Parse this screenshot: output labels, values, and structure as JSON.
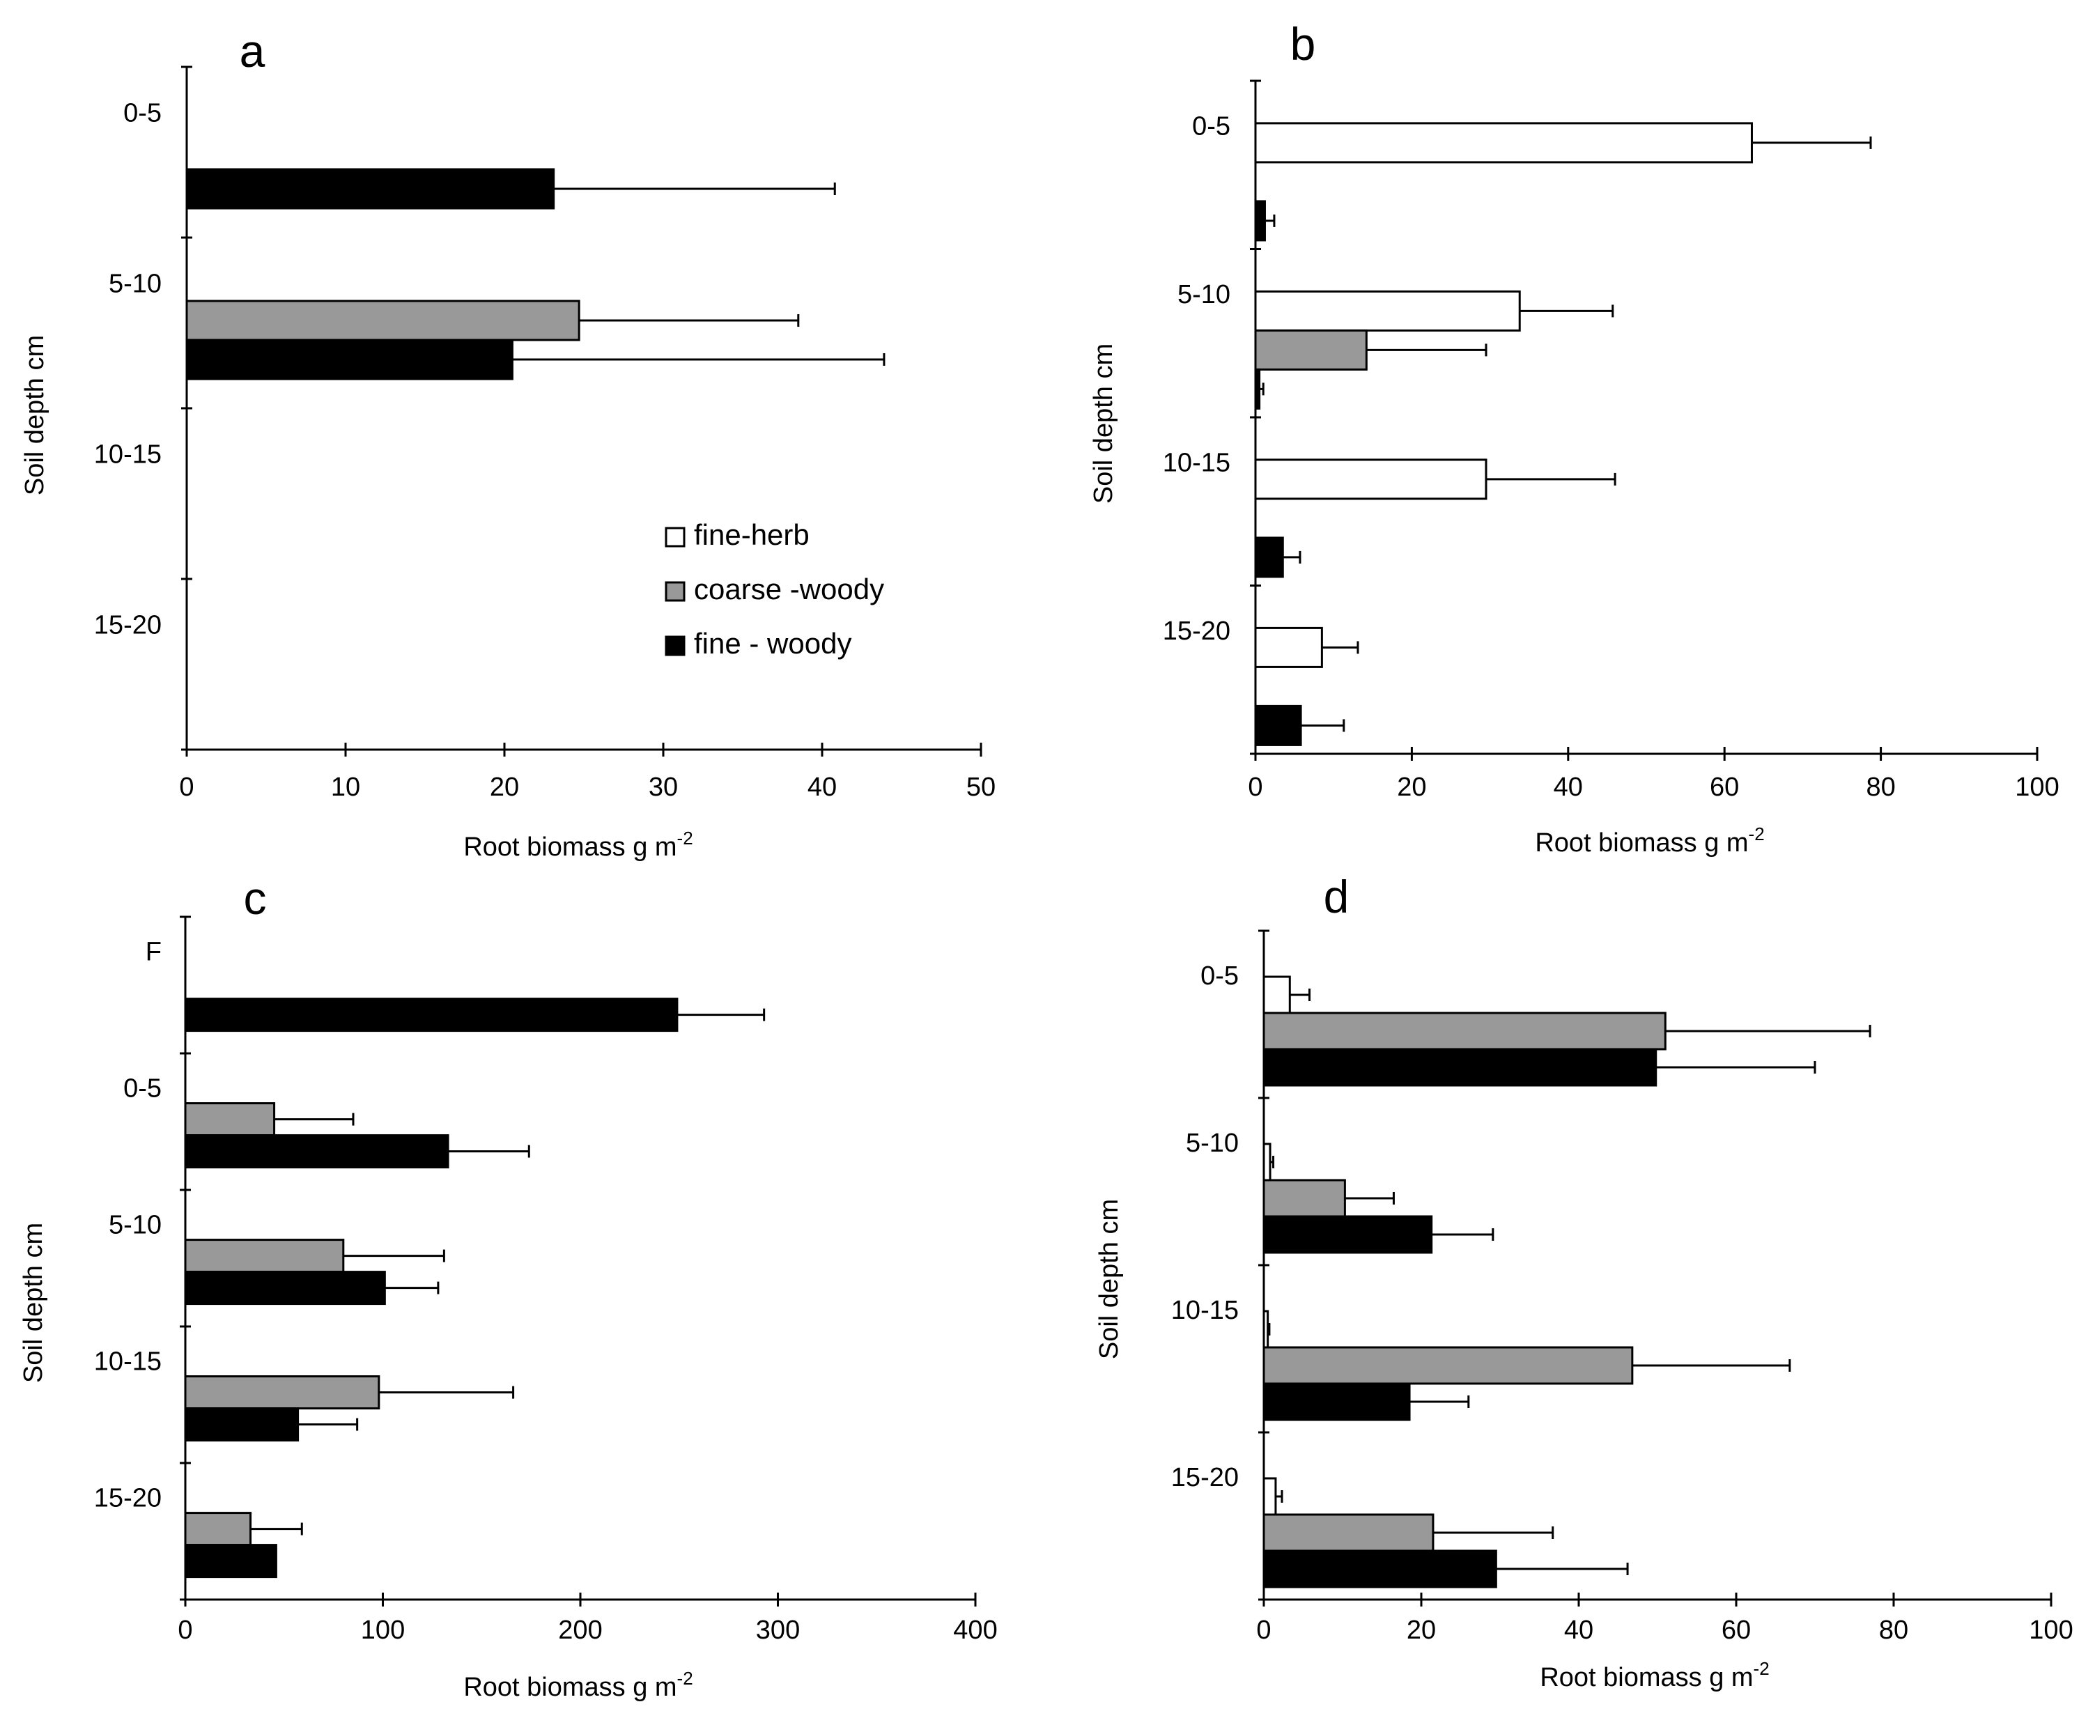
{
  "colors": {
    "fine-herb": "#ffffff",
    "coarse-woody": "#999999",
    "fine-woody": "#000000"
  },
  "legend": [
    {
      "key": "fine-herb",
      "label": "fine-herb"
    },
    {
      "key": "coarse-woody",
      "label": "coarse -woody"
    },
    {
      "key": "fine-woody",
      "label": "fine - woody"
    }
  ],
  "chart_data": [
    {
      "type": "bar",
      "panel": "a",
      "orientation": "horizontal",
      "ylabel": "Soil depth cm",
      "xlabel": "Root biomass g m",
      "xlabel_sup": "-2",
      "xlim": [
        0,
        50
      ],
      "xticks": [
        0,
        10,
        20,
        30,
        40,
        50
      ],
      "categories": [
        "0-5",
        "5-10",
        "10-15",
        "15-20"
      ],
      "series": [
        {
          "name": "coarse-woody",
          "values": [
            null,
            24.7,
            null,
            null
          ],
          "errors": [
            null,
            13.8,
            null,
            null
          ]
        },
        {
          "name": "fine-woody",
          "values": [
            23.1,
            20.5,
            null,
            null
          ],
          "errors": [
            17.7,
            23.4,
            null,
            null
          ]
        }
      ],
      "legend_position": "center-right"
    },
    {
      "type": "bar",
      "panel": "b",
      "orientation": "horizontal",
      "ylabel": "Soil depth cm",
      "xlabel": "Root biomass g m",
      "xlabel_sup": "-2",
      "xlim": [
        0,
        100
      ],
      "xticks": [
        0,
        20,
        40,
        60,
        80,
        100
      ],
      "categories": [
        "0-5",
        "5-10",
        "10-15",
        "15-20"
      ],
      "series": [
        {
          "name": "fine-herb",
          "values": [
            63.5,
            33.8,
            29.5,
            8.5
          ],
          "errors": [
            15.2,
            11.9,
            16.5,
            4.6
          ]
        },
        {
          "name": "coarse-woody",
          "values": [
            null,
            14.2,
            null,
            null
          ],
          "errors": [
            null,
            15.3,
            null,
            null
          ]
        },
        {
          "name": "fine-woody",
          "values": [
            1.2,
            0.5,
            3.5,
            5.8
          ],
          "errors": [
            1.2,
            0.5,
            2.2,
            5.5
          ]
        }
      ]
    },
    {
      "type": "bar",
      "panel": "c",
      "orientation": "horizontal",
      "ylabel": "Soil depth cm",
      "xlabel": "Root biomass g m",
      "xlabel_sup": "-2",
      "xlim": [
        0,
        400
      ],
      "xticks": [
        0,
        100,
        200,
        300,
        400
      ],
      "categories": [
        "F",
        "0-5",
        "5-10",
        "10-15",
        "15-20"
      ],
      "series": [
        {
          "name": "coarse-woody",
          "values": [
            null,
            45,
            80,
            98,
            33
          ],
          "errors": [
            null,
            40,
            51,
            68,
            26
          ]
        },
        {
          "name": "fine-woody",
          "values": [
            249,
            133,
            101,
            57,
            46
          ],
          "errors": [
            44,
            41,
            27,
            30,
            null
          ]
        }
      ]
    },
    {
      "type": "bar",
      "panel": "d",
      "orientation": "horizontal",
      "ylabel": "Soil depth cm",
      "xlabel": "Root biomass g m",
      "xlabel_sup": "-2",
      "xlim": [
        0,
        100
      ],
      "xticks": [
        0,
        20,
        40,
        60,
        80,
        100
      ],
      "categories": [
        "0-5",
        "5-10",
        "10-15",
        "15-20"
      ],
      "series": [
        {
          "name": "fine-herb",
          "values": [
            3.3,
            0.8,
            0.5,
            1.5
          ],
          "errors": [
            2.5,
            0.4,
            0.2,
            0.8
          ]
        },
        {
          "name": "coarse-woody",
          "values": [
            51,
            10.3,
            46.8,
            21.5
          ],
          "errors": [
            26,
            6.2,
            20,
            15.2
          ]
        },
        {
          "name": "fine-woody",
          "values": [
            49.8,
            21.3,
            18.5,
            29.5
          ],
          "errors": [
            20.2,
            7.8,
            7.5,
            16.7
          ]
        }
      ]
    }
  ]
}
